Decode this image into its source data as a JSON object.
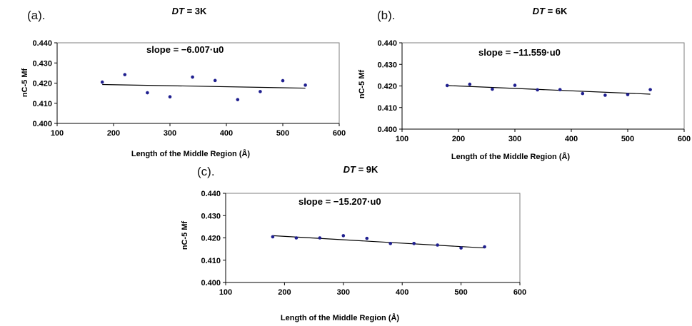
{
  "chart_data": [
    {
      "type": "scatter",
      "panel_label": "(a).",
      "title_var": "DT",
      "title_rest": " = 3K",
      "annotation": "slope = −6.007·u0",
      "xlabel": "Length of the Middle Region (Å)",
      "ylabel": "nC-5  Mf",
      "xlim": [
        100,
        600
      ],
      "ylim": [
        0.4,
        0.44
      ],
      "xticks": [
        "100",
        "200",
        "300",
        "400",
        "500",
        "600"
      ],
      "yticks": [
        "0.400",
        "0.410",
        "0.420",
        "0.430",
        "0.440"
      ],
      "grid": false,
      "x": [
        180,
        220,
        260,
        300,
        340,
        380,
        420,
        460,
        500,
        540
      ],
      "y": [
        0.4205,
        0.4242,
        0.4152,
        0.4132,
        0.423,
        0.4213,
        0.4118,
        0.4158,
        0.4212,
        0.419
      ],
      "trendline": {
        "x": [
          180,
          540
        ],
        "y": [
          0.4193,
          0.4175
        ]
      },
      "point_color": "#1f1f8f"
    },
    {
      "type": "scatter",
      "panel_label": "(b).",
      "title_var": "DT",
      "title_rest": " = 6K",
      "annotation": "slope = −11.559·u0",
      "xlabel": "Length of the Middle Region (Å)",
      "ylabel": "nC-5  Mf",
      "xlim": [
        100,
        600
      ],
      "ylim": [
        0.4,
        0.44
      ],
      "xticks": [
        "100",
        "200",
        "300",
        "400",
        "500",
        "600"
      ],
      "yticks": [
        "0.400",
        "0.410",
        "0.420",
        "0.430",
        "0.440"
      ],
      "grid": false,
      "x": [
        180,
        220,
        260,
        300,
        340,
        380,
        420,
        460,
        500,
        540
      ],
      "y": [
        0.4202,
        0.4208,
        0.4185,
        0.4203,
        0.4182,
        0.4183,
        0.4165,
        0.4157,
        0.416,
        0.4183
      ],
      "trendline": {
        "x": [
          180,
          540
        ],
        "y": [
          0.4202,
          0.4162
        ]
      },
      "point_color": "#1f1f8f"
    },
    {
      "type": "scatter",
      "panel_label": "(c).",
      "title_var": "DT",
      "title_rest": " = 9K",
      "annotation": "slope = −15.207·u0",
      "xlabel": "Length of the Middle Region (Å)",
      "ylabel": "nC-5  Mf",
      "xlim": [
        100,
        600
      ],
      "ylim": [
        0.4,
        0.44
      ],
      "xticks": [
        "100",
        "200",
        "300",
        "400",
        "500",
        "600"
      ],
      "yticks": [
        "0.400",
        "0.410",
        "0.420",
        "0.430",
        "0.440"
      ],
      "grid": false,
      "x": [
        180,
        220,
        260,
        300,
        340,
        380,
        420,
        460,
        500,
        540
      ],
      "y": [
        0.4205,
        0.42,
        0.42,
        0.421,
        0.4198,
        0.4175,
        0.4175,
        0.4168,
        0.4155,
        0.416
      ],
      "trendline": {
        "x": [
          180,
          540
        ],
        "y": [
          0.421,
          0.4155
        ]
      },
      "point_color": "#1f1f8f"
    }
  ]
}
